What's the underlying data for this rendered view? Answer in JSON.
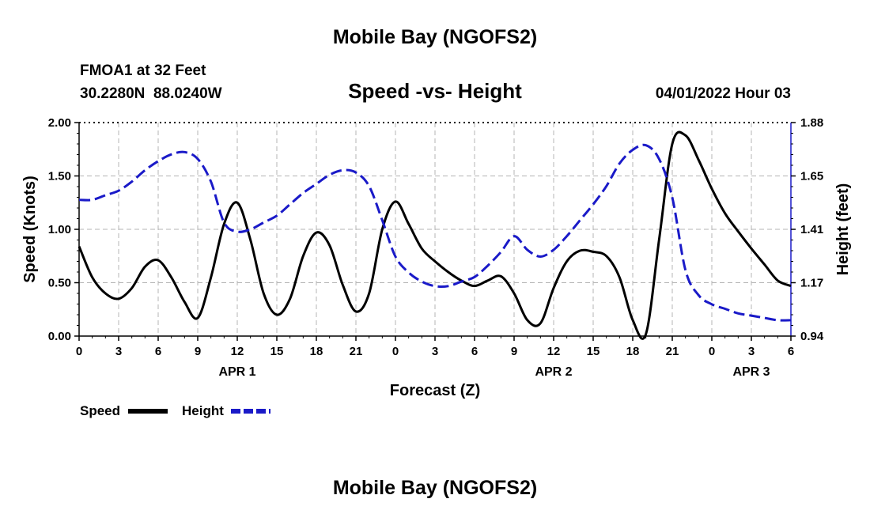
{
  "chart_data": {
    "type": "line",
    "title": "Mobile Bay (NGOFS2)",
    "station": "FMOA1 at 32 Feet",
    "location": "30.2280N  88.0240W",
    "subtitle": "Speed -vs- Height",
    "datetime": "04/01/2022 Hour 03",
    "footer_title": "Mobile Bay (NGOFS2)",
    "xlabel": "Forecast (Z)",
    "ylabel_left": "Speed (Knots)",
    "ylabel_right": "Height (feet)",
    "x_range": [
      0,
      54
    ],
    "y_left_range": [
      0,
      2
    ],
    "y_right_range": [
      0.94,
      1.88
    ],
    "x_tick_labels": [
      "0",
      "3",
      "6",
      "9",
      "12",
      "15",
      "18",
      "21",
      "0",
      "3",
      "6",
      "9",
      "12",
      "15",
      "18",
      "21",
      "0",
      "3",
      "6"
    ],
    "date_labels": [
      {
        "label": "APR 1",
        "hour": 12
      },
      {
        "label": "APR 2",
        "hour": 36
      },
      {
        "label": "APR 3",
        "hour": 51
      }
    ],
    "y_left_ticks": [
      "0.00",
      "0.50",
      "1.00",
      "1.50",
      "2.00"
    ],
    "y_right_ticks": [
      "0.94",
      "1.17",
      "1.41",
      "1.65",
      "1.88"
    ],
    "grid": true,
    "legend_position": "bottom-left",
    "series": [
      {
        "name": "Speed",
        "axis": "left",
        "color": "#000000",
        "dash": "solid",
        "x": [
          0,
          1,
          2,
          3,
          4,
          5,
          6,
          7,
          8,
          9,
          10,
          11,
          12,
          13,
          14,
          15,
          16,
          17,
          18,
          19,
          20,
          21,
          22,
          23,
          24,
          25,
          26,
          27,
          28,
          29,
          30,
          31,
          32,
          33,
          34,
          35,
          36,
          37,
          38,
          39,
          40,
          41,
          42,
          43,
          44,
          45,
          46,
          47,
          48,
          49,
          50,
          51,
          52,
          53,
          54
        ],
        "values": [
          0.84,
          0.55,
          0.4,
          0.35,
          0.45,
          0.65,
          0.71,
          0.55,
          0.32,
          0.17,
          0.55,
          1.05,
          1.25,
          0.9,
          0.4,
          0.2,
          0.35,
          0.75,
          0.97,
          0.85,
          0.48,
          0.23,
          0.4,
          1.0,
          1.26,
          1.05,
          0.82,
          0.7,
          0.6,
          0.52,
          0.47,
          0.52,
          0.56,
          0.4,
          0.15,
          0.12,
          0.45,
          0.7,
          0.8,
          0.79,
          0.75,
          0.55,
          0.15,
          0.02,
          0.9,
          1.8,
          1.88,
          1.65,
          1.38,
          1.15,
          0.98,
          0.82,
          0.67,
          0.52,
          0.47
        ]
      },
      {
        "name": "Height",
        "axis": "right",
        "color": "#1a1ac8",
        "dash": "dashed",
        "x": [
          0,
          1,
          2,
          3,
          4,
          5,
          6,
          7,
          8,
          9,
          10,
          11,
          12,
          13,
          14,
          15,
          16,
          17,
          18,
          19,
          20,
          21,
          22,
          23,
          24,
          25,
          26,
          27,
          28,
          29,
          30,
          31,
          32,
          33,
          34,
          35,
          36,
          37,
          38,
          39,
          40,
          41,
          42,
          43,
          44,
          45,
          46,
          47,
          48,
          49,
          50,
          51,
          52,
          53,
          54
        ],
        "values": [
          1.54,
          1.54,
          1.56,
          1.58,
          1.62,
          1.67,
          1.71,
          1.74,
          1.75,
          1.72,
          1.62,
          1.44,
          1.4,
          1.41,
          1.44,
          1.47,
          1.52,
          1.57,
          1.61,
          1.65,
          1.67,
          1.66,
          1.6,
          1.45,
          1.29,
          1.22,
          1.18,
          1.16,
          1.16,
          1.18,
          1.2,
          1.25,
          1.31,
          1.38,
          1.32,
          1.29,
          1.32,
          1.38,
          1.45,
          1.52,
          1.6,
          1.7,
          1.76,
          1.78,
          1.72,
          1.55,
          1.23,
          1.12,
          1.08,
          1.06,
          1.04,
          1.03,
          1.02,
          1.01,
          1.01
        ]
      }
    ]
  }
}
